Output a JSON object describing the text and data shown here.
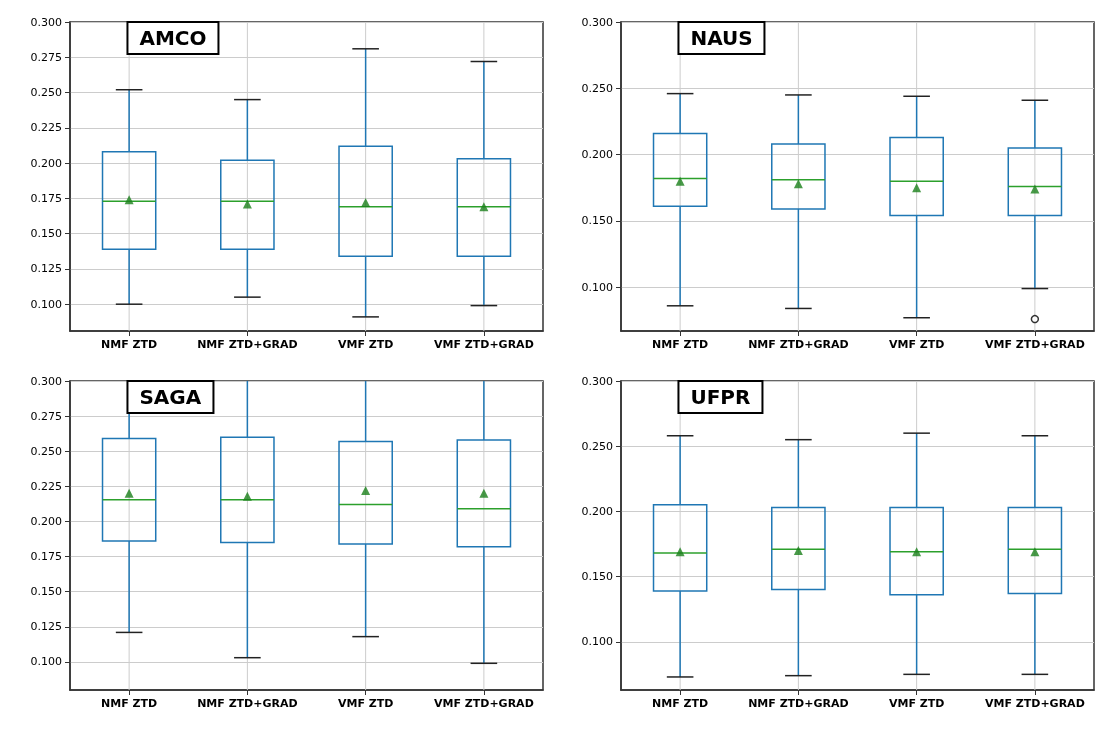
{
  "chart_data": [
    {
      "type": "box",
      "title": "AMCO",
      "categories": [
        "NMF ZTD",
        "NMF ZTD+GRAD",
        "VMF ZTD",
        "VMF ZTD+GRAD"
      ],
      "ylim": [
        0.081,
        0.3
      ],
      "yticks": [
        {
          "value": 0.1,
          "label": "0.100"
        },
        {
          "value": 0.125,
          "label": "0.125"
        },
        {
          "value": 0.15,
          "label": "0.150"
        },
        {
          "value": 0.175,
          "label": "0.175"
        },
        {
          "value": 0.2,
          "label": "0.200"
        },
        {
          "value": 0.225,
          "label": "0.225"
        },
        {
          "value": 0.25,
          "label": "0.250"
        },
        {
          "value": 0.275,
          "label": "0.275"
        },
        {
          "value": 0.3,
          "label": "0.300"
        }
      ],
      "grid": true,
      "marker": "triangle",
      "series": [
        {
          "color": "#1f77b4",
          "boxes": [
            {
              "low": 0.1,
              "q1": 0.139,
              "median": 0.173,
              "q3": 0.208,
              "high": 0.252,
              "mean": 0.174
            },
            {
              "low": 0.105,
              "q1": 0.139,
              "median": 0.173,
              "q3": 0.202,
              "high": 0.245,
              "mean": 0.171
            },
            {
              "low": 0.091,
              "q1": 0.134,
              "median": 0.169,
              "q3": 0.212,
              "high": 0.281,
              "mean": 0.172
            },
            {
              "low": 0.099,
              "q1": 0.134,
              "median": 0.169,
              "q3": 0.203,
              "high": 0.272,
              "mean": 0.169
            }
          ]
        }
      ]
    },
    {
      "type": "box",
      "title": "NAUS",
      "categories": [
        "NMF ZTD",
        "NMF ZTD+GRAD",
        "VMF ZTD",
        "VMF ZTD+GRAD"
      ],
      "ylim": [
        0.067,
        0.3
      ],
      "yticks": [
        {
          "value": 0.1,
          "label": "0.100"
        },
        {
          "value": 0.15,
          "label": "0.150"
        },
        {
          "value": 0.2,
          "label": "0.200"
        },
        {
          "value": 0.25,
          "label": "0.250"
        },
        {
          "value": 0.3,
          "label": "0.300"
        }
      ],
      "grid": true,
      "marker": "triangle",
      "series": [
        {
          "color": "#1f77b4",
          "boxes": [
            {
              "low": 0.086,
              "q1": 0.161,
              "median": 0.182,
              "q3": 0.216,
              "high": 0.246,
              "mean": 0.18
            },
            {
              "low": 0.084,
              "q1": 0.159,
              "median": 0.181,
              "q3": 0.208,
              "high": 0.245,
              "mean": 0.178
            },
            {
              "low": 0.077,
              "q1": 0.154,
              "median": 0.18,
              "q3": 0.213,
              "high": 0.244,
              "mean": 0.175
            },
            {
              "low": 0.099,
              "q1": 0.154,
              "median": 0.176,
              "q3": 0.205,
              "high": 0.241,
              "mean": 0.174,
              "outliers": [
                0.076
              ]
            }
          ]
        }
      ]
    },
    {
      "type": "box",
      "title": "SAGA",
      "categories": [
        "NMF ZTD",
        "NMF ZTD+GRAD",
        "VMF ZTD",
        "VMF ZTD+GRAD"
      ],
      "ylim": [
        0.08,
        0.3
      ],
      "yticks": [
        {
          "value": 0.1,
          "label": "0.100"
        },
        {
          "value": 0.125,
          "label": "0.125"
        },
        {
          "value": 0.15,
          "label": "0.150"
        },
        {
          "value": 0.175,
          "label": "0.175"
        },
        {
          "value": 0.2,
          "label": "0.200"
        },
        {
          "value": 0.225,
          "label": "0.225"
        },
        {
          "value": 0.25,
          "label": "0.250"
        },
        {
          "value": 0.275,
          "label": "0.275"
        },
        {
          "value": 0.3,
          "label": "0.300"
        }
      ],
      "grid": true,
      "marker": "triangle",
      "series": [
        {
          "color": "#1f77b4",
          "boxes": [
            {
              "low": 0.121,
              "q1": 0.186,
              "median": 0.2155,
              "q3": 0.259,
              "high": 0.3,
              "mean": 0.22
            },
            {
              "low": 0.103,
              "q1": 0.185,
              "median": 0.2155,
              "q3": 0.26,
              "high": 0.3,
              "mean": 0.218
            },
            {
              "low": 0.118,
              "q1": 0.184,
              "median": 0.212,
              "q3": 0.257,
              "high": 0.3,
              "mean": 0.222
            },
            {
              "low": 0.099,
              "q1": 0.182,
              "median": 0.209,
              "q3": 0.258,
              "high": 0.3,
              "mean": 0.22
            }
          ]
        }
      ]
    },
    {
      "type": "box",
      "title": "UFPR",
      "categories": [
        "NMF ZTD",
        "NMF ZTD+GRAD",
        "VMF ZTD",
        "VMF ZTD+GRAD"
      ],
      "ylim": [
        0.063,
        0.3
      ],
      "yticks": [
        {
          "value": 0.1,
          "label": "0.100"
        },
        {
          "value": 0.15,
          "label": "0.150"
        },
        {
          "value": 0.2,
          "label": "0.200"
        },
        {
          "value": 0.25,
          "label": "0.250"
        },
        {
          "value": 0.3,
          "label": "0.300"
        }
      ],
      "grid": true,
      "marker": "triangle",
      "series": [
        {
          "color": "#1f77b4",
          "boxes": [
            {
              "low": 0.073,
              "q1": 0.139,
              "median": 0.168,
              "q3": 0.205,
              "high": 0.258,
              "mean": 0.169
            },
            {
              "low": 0.074,
              "q1": 0.14,
              "median": 0.171,
              "q3": 0.203,
              "high": 0.255,
              "mean": 0.17
            },
            {
              "low": 0.075,
              "q1": 0.136,
              "median": 0.169,
              "q3": 0.203,
              "high": 0.26,
              "mean": 0.169
            },
            {
              "low": 0.075,
              "q1": 0.137,
              "median": 0.171,
              "q3": 0.203,
              "high": 0.258,
              "mean": 0.169
            }
          ]
        }
      ]
    }
  ]
}
